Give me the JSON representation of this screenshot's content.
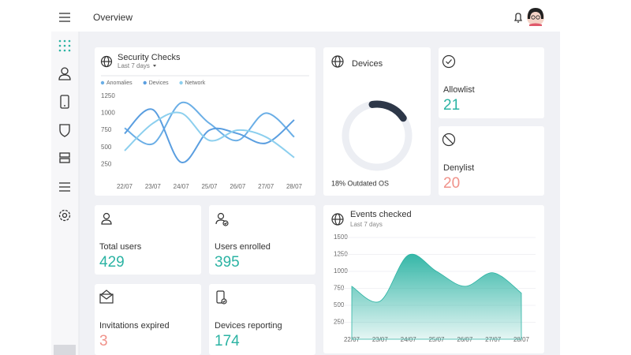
{
  "topbar": {
    "title": "Overview"
  },
  "security_checks": {
    "type": "line",
    "title": "Security Checks",
    "subtitle": "Last 7 days",
    "categories": [
      "22/07",
      "23/07",
      "24/07",
      "25/07",
      "26/07",
      "27/07",
      "28/07"
    ],
    "series": [
      {
        "name": "Anomalies",
        "color": "#6aaee6",
        "values": [
          780,
          550,
          1150,
          850,
          600,
          1000,
          650
        ]
      },
      {
        "name": "Devices",
        "color": "#5a9ee0",
        "values": [
          700,
          1050,
          280,
          750,
          700,
          560,
          900
        ]
      },
      {
        "name": "Network",
        "color": "#8ccfee",
        "values": [
          450,
          850,
          1000,
          600,
          750,
          650,
          350
        ]
      }
    ],
    "ylim": [
      0,
      1500
    ],
    "yticks": [
      250,
      500,
      750,
      1000,
      1250
    ]
  },
  "devices": {
    "title": "Devices",
    "outdated_percent": 18,
    "caption": "18% Outdated OS"
  },
  "stats": [
    {
      "title": "Allowlist",
      "value": 21,
      "color": "#2bb3a3"
    },
    {
      "title": "Denylist",
      "value": 20,
      "color": "#f0928a"
    },
    {
      "title": "Total users",
      "value": 429,
      "color": "#2bb3a3"
    },
    {
      "title": "Users enrolled",
      "value": 395,
      "color": "#2bb3a3"
    },
    {
      "title": "Invitations expired",
      "value": 3,
      "color": "#f0928a"
    },
    {
      "title": "Devices reporting",
      "value": 174,
      "color": "#2bb3a3"
    }
  ],
  "events_checked": {
    "type": "area",
    "title": "Events checked",
    "subtitle": "Last 7 days",
    "categories": [
      "22/07",
      "23/07",
      "24/07",
      "25/07",
      "26/07",
      "27/07",
      "28/07"
    ],
    "values": [
      780,
      560,
      1240,
      1000,
      780,
      980,
      680
    ],
    "color": "#2bb3a3",
    "ylim": [
      0,
      1500
    ],
    "yticks": [
      250,
      500,
      750,
      1000,
      1250,
      1500
    ],
    "grid": true
  }
}
